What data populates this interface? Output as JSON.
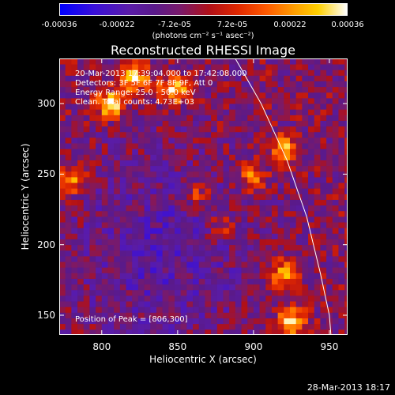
{
  "colorbar": {
    "tick_labels": [
      "-0.00036",
      "-0.00022",
      "-7.2e-05",
      "7.2e-05",
      "0.00022",
      "0.00036"
    ],
    "unit": "(photons cm⁻² s⁻¹ asec⁻²)",
    "colors": [
      "#0000ff",
      "#5a1ca8",
      "#b01018",
      "#ff5a00",
      "#ffd000",
      "#ffffff"
    ]
  },
  "chart_data": {
    "type": "heatmap",
    "title": "Reconstructed RHESSI Image",
    "xlabel": "Heliocentric X (arcsec)",
    "ylabel": "Heliocentric Y (arcsec)",
    "xlim": [
      772,
      962
    ],
    "ylim": [
      136,
      332
    ],
    "x_ticks": [
      800,
      850,
      900,
      950
    ],
    "y_ticks": [
      150,
      200,
      250,
      300
    ],
    "color_range": [
      -0.00036,
      0.00036
    ],
    "limb_curve": [
      [
        888,
        332
      ],
      [
        905,
        300
      ],
      [
        922,
        260
      ],
      [
        935,
        220
      ],
      [
        944,
        180
      ],
      [
        950,
        150
      ],
      [
        951,
        136
      ]
    ],
    "bright_sources": [
      {
        "x": 806,
        "y": 300,
        "value": 0.00036
      },
      {
        "x": 822,
        "y": 318,
        "value": 0.0003
      },
      {
        "x": 847,
        "y": 310,
        "value": 0.00033
      },
      {
        "x": 925,
        "y": 145,
        "value": 0.00034
      },
      {
        "x": 920,
        "y": 180,
        "value": 0.00025
      },
      {
        "x": 920,
        "y": 268,
        "value": 0.00024
      },
      {
        "x": 900,
        "y": 248,
        "value": 0.00018
      },
      {
        "x": 780,
        "y": 245,
        "value": 0.0002
      },
      {
        "x": 862,
        "y": 235,
        "value": 0.00012
      },
      {
        "x": 880,
        "y": 212,
        "value": 0.00012
      }
    ],
    "background_value": -5e-05,
    "dim_region_value": -0.00016
  },
  "info_lines": [
    "20-Mar-2013 17:39:04.000 to 17:42:08.000",
    "Detectors: 3F 5F 6F 7F 8F 9F, Att 0",
    "Energy Range: 25.0 - 50.0 keV",
    "Clean.   Total counts: 4.73E+03"
  ],
  "peak_label": "Position of Peak = [806,300]",
  "footer_date": "28-Mar-2013 18:17"
}
